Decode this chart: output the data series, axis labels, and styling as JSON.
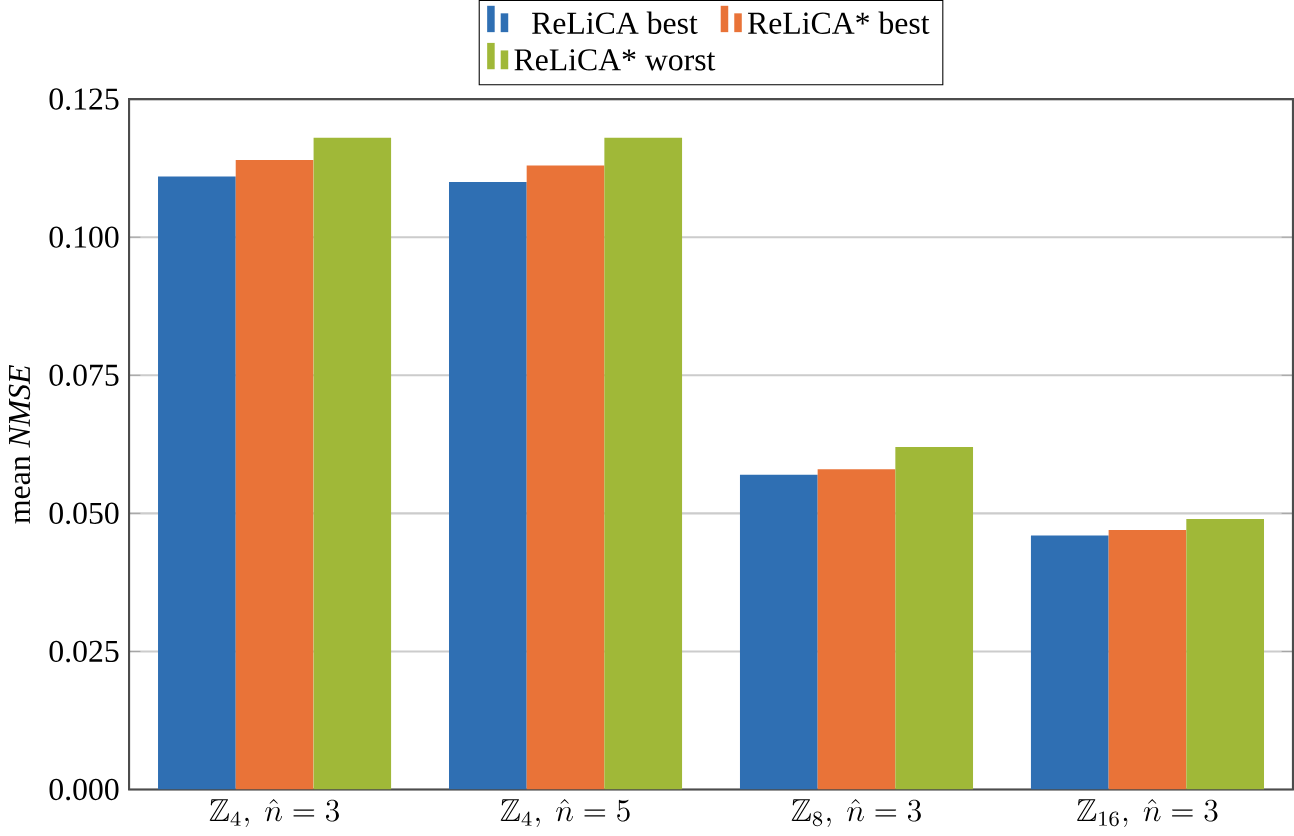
{
  "chart_data": {
    "type": "bar",
    "ylabel": "mean *NMSE*",
    "categories": [
      "\\mathbb{Z}_4,\\ \\hat{n}=3",
      "\\mathbb{Z}_4,\\ \\hat{n}=5",
      "\\mathbb{Z}_8,\\ \\hat{n}=3",
      "\\mathbb{Z}_{16},\\ \\hat{n}=3"
    ],
    "series": [
      {
        "name": "ReLiCA   best",
        "color": "#2f6fb3",
        "values": [
          0.111,
          0.11,
          0.057,
          0.046
        ]
      },
      {
        "name": "ReLiCA* best",
        "color": "#e97338",
        "values": [
          0.114,
          0.113,
          0.058,
          0.047
        ]
      },
      {
        "name": "ReLiCA* worst",
        "color": "#a0b838",
        "values": [
          0.118,
          0.118,
          0.062,
          0.049
        ]
      }
    ],
    "ylim": [
      0,
      0.125
    ],
    "yticks": [
      {
        "value": 0,
        "label": "0.000"
      },
      {
        "value": 0.025,
        "label": "0.025"
      },
      {
        "value": 0.05,
        "label": "0.050"
      },
      {
        "value": 0.075,
        "label": "0.075"
      },
      {
        "value": 0.1,
        "label": "0.100"
      },
      {
        "value": 0.125,
        "label": "0.125"
      }
    ],
    "grid": "y",
    "legend": "top"
  }
}
